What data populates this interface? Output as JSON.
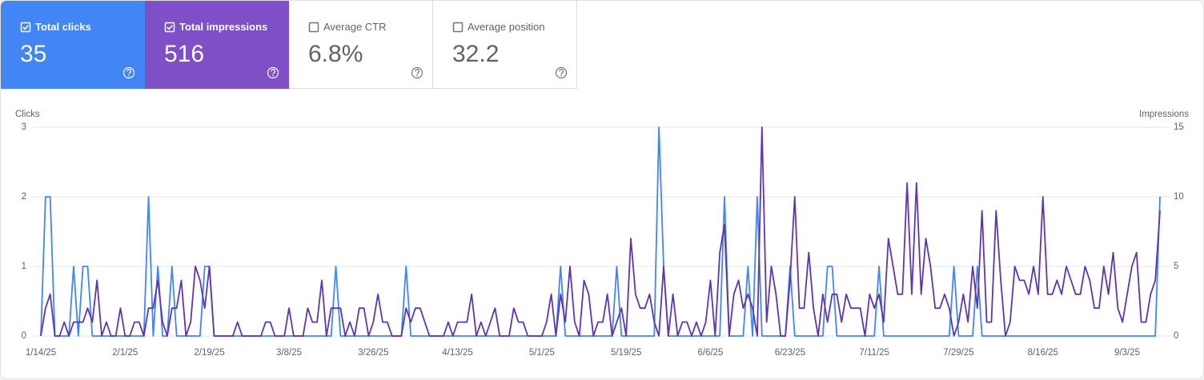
{
  "cards": [
    {
      "label": "Total clicks",
      "value": "35",
      "selected": true
    },
    {
      "label": "Total impressions",
      "value": "516",
      "selected": true
    },
    {
      "label": "Average CTR",
      "value": "6.8%",
      "selected": false
    },
    {
      "label": "Average position",
      "value": "32.2",
      "selected": false
    }
  ],
  "chart_data": {
    "type": "line",
    "x": [
      "1/14/25",
      "1/15/25",
      "1/16/25",
      "1/17/25",
      "1/18/25",
      "1/19/25",
      "1/20/25",
      "1/21/25",
      "1/22/25",
      "1/23/25",
      "1/24/25",
      "1/25/25",
      "1/26/25",
      "1/27/25",
      "1/28/25",
      "1/29/25",
      "1/30/25",
      "1/31/25",
      "2/1/25",
      "2/2/25",
      "2/3/25",
      "2/4/25",
      "2/5/25",
      "2/6/25",
      "2/7/25",
      "2/8/25",
      "2/9/25",
      "2/10/25",
      "2/11/25",
      "2/12/25",
      "2/13/25",
      "2/14/25",
      "2/15/25",
      "2/16/25",
      "2/17/25",
      "2/18/25",
      "2/19/25",
      "2/20/25",
      "2/21/25",
      "2/22/25",
      "2/23/25",
      "2/24/25",
      "2/25/25",
      "2/26/25",
      "2/27/25",
      "2/28/25",
      "3/1/25",
      "3/2/25",
      "3/3/25",
      "3/4/25",
      "3/5/25",
      "3/6/25",
      "3/7/25",
      "3/8/25",
      "3/9/25",
      "3/10/25",
      "3/11/25",
      "3/12/25",
      "3/13/25",
      "3/14/25",
      "3/15/25",
      "3/16/25",
      "3/17/25",
      "3/18/25",
      "3/19/25",
      "3/20/25",
      "3/21/25",
      "3/22/25",
      "3/23/25",
      "3/24/25",
      "3/25/25",
      "3/26/25",
      "3/27/25",
      "3/28/25",
      "3/29/25",
      "3/30/25",
      "3/31/25",
      "4/1/25",
      "4/2/25",
      "4/3/25",
      "4/4/25",
      "4/5/25",
      "4/6/25",
      "4/7/25",
      "4/8/25",
      "4/9/25",
      "4/10/25",
      "4/11/25",
      "4/12/25",
      "4/13/25",
      "4/14/25",
      "4/15/25",
      "4/16/25",
      "4/17/25",
      "4/18/25",
      "4/19/25",
      "4/20/25",
      "4/21/25",
      "4/22/25",
      "4/23/25",
      "4/24/25",
      "4/25/25",
      "4/26/25",
      "4/27/25",
      "4/28/25",
      "4/29/25",
      "4/30/25",
      "5/1/25",
      "5/2/25",
      "5/3/25",
      "5/4/25",
      "5/5/25",
      "5/6/25",
      "5/7/25",
      "5/8/25",
      "5/9/25",
      "5/10/25",
      "5/11/25",
      "5/12/25",
      "5/13/25",
      "5/14/25",
      "5/15/25",
      "5/16/25",
      "5/17/25",
      "5/18/25",
      "5/19/25",
      "5/20/25",
      "5/21/25",
      "5/22/25",
      "5/23/25",
      "5/24/25",
      "5/25/25",
      "5/26/25",
      "5/27/25",
      "5/28/25",
      "5/29/25",
      "5/30/25",
      "5/31/25",
      "6/1/25",
      "6/2/25",
      "6/3/25",
      "6/4/25",
      "6/5/25",
      "6/6/25",
      "6/7/25",
      "6/8/25",
      "6/9/25",
      "6/10/25",
      "6/11/25",
      "6/12/25",
      "6/13/25",
      "6/14/25",
      "6/15/25",
      "6/16/25",
      "6/17/25",
      "6/18/25",
      "6/19/25",
      "6/20/25",
      "6/21/25",
      "6/22/25",
      "6/23/25",
      "6/24/25",
      "6/25/25",
      "6/26/25",
      "6/27/25",
      "6/28/25",
      "6/29/25",
      "6/30/25",
      "7/1/25",
      "7/2/25",
      "7/3/25",
      "7/4/25",
      "7/5/25",
      "7/6/25",
      "7/7/25",
      "7/8/25",
      "7/9/25",
      "7/10/25",
      "7/11/25",
      "7/12/25",
      "7/13/25",
      "7/14/25",
      "7/15/25",
      "7/16/25",
      "7/17/25",
      "7/18/25",
      "7/19/25",
      "7/20/25",
      "7/21/25",
      "7/22/25",
      "7/23/25",
      "7/24/25",
      "7/25/25",
      "7/26/25",
      "7/27/25",
      "7/28/25",
      "7/29/25",
      "7/30/25",
      "7/31/25",
      "8/1/25",
      "8/2/25",
      "8/3/25",
      "8/4/25",
      "8/5/25",
      "8/6/25",
      "8/7/25",
      "8/8/25",
      "8/9/25",
      "8/10/25",
      "8/11/25",
      "8/12/25",
      "8/13/25",
      "8/14/25",
      "8/15/25",
      "8/16/25",
      "8/17/25",
      "8/18/25",
      "8/19/25",
      "8/20/25",
      "8/21/25",
      "8/22/25",
      "8/23/25",
      "8/24/25",
      "8/25/25",
      "8/26/25",
      "8/27/25",
      "8/28/25",
      "8/29/25",
      "8/30/25",
      "8/31/25",
      "9/1/25",
      "9/2/25",
      "9/3/25",
      "9/4/25",
      "9/5/25",
      "9/6/25",
      "9/7/25",
      "9/8/25",
      "9/9/25",
      "9/10/25"
    ],
    "xticks": [
      "1/14/25",
      "2/1/25",
      "2/19/25",
      "3/8/25",
      "3/26/25",
      "4/13/25",
      "5/1/25",
      "5/19/25",
      "6/6/25",
      "6/23/25",
      "7/11/25",
      "7/29/25",
      "8/16/25",
      "9/3/25"
    ],
    "ylim": [
      0,
      3
    ],
    "yticks": [
      0,
      1,
      2,
      3
    ],
    "y2lim": [
      0,
      15
    ],
    "y2ticks": [
      0,
      5,
      10,
      15
    ],
    "grid": true,
    "series": [
      {
        "name": "Clicks",
        "color": "#4285f4",
        "values": [
          0,
          2,
          2,
          0,
          0,
          0,
          0,
          1,
          0,
          1,
          1,
          0,
          0,
          0,
          0,
          0,
          0,
          0,
          0,
          0,
          0,
          0,
          0,
          2,
          0,
          1,
          0,
          0,
          1,
          0,
          0,
          0,
          0,
          0,
          0,
          1,
          1,
          0,
          0,
          0,
          0,
          0,
          0,
          0,
          0,
          0,
          0,
          0,
          0,
          0,
          0,
          0,
          0,
          0,
          0,
          0,
          0,
          0,
          0,
          0,
          0,
          0,
          0,
          1,
          0,
          0,
          0,
          0,
          0,
          0,
          0,
          0,
          0,
          0,
          0,
          0,
          0,
          0,
          1,
          0,
          0,
          0,
          0,
          0,
          0,
          0,
          0,
          0,
          0,
          0,
          0,
          0,
          0,
          0,
          0,
          0,
          0,
          0,
          0,
          0,
          0,
          0,
          0,
          0,
          0,
          0,
          0,
          0,
          0,
          0,
          0,
          1,
          0,
          0,
          0,
          0,
          0,
          0,
          0,
          0,
          0,
          0,
          0,
          1,
          0,
          0,
          0,
          0,
          0,
          0,
          0,
          0,
          3,
          1,
          0,
          0,
          0,
          0,
          0,
          0,
          0,
          0,
          0,
          0,
          0,
          0,
          2,
          0,
          0,
          0,
          0,
          1,
          0,
          2,
          0,
          0,
          0,
          0,
          0,
          0,
          1,
          0,
          0,
          0,
          0,
          0,
          0,
          0,
          1,
          1,
          0,
          0,
          0,
          0,
          0,
          0,
          0,
          0,
          0,
          1,
          0,
          0,
          0,
          0,
          0,
          0,
          0,
          0,
          0,
          0,
          0,
          0,
          0,
          0,
          0,
          1,
          0,
          0,
          0,
          0,
          1,
          0,
          0,
          0,
          0,
          0,
          0,
          0,
          0,
          0,
          0,
          0,
          0,
          0,
          0,
          0,
          0,
          0,
          0,
          0,
          0,
          0,
          0,
          0,
          0,
          0,
          0,
          0,
          0,
          0,
          0,
          0,
          0,
          0,
          0,
          0,
          0,
          0,
          0,
          2
        ]
      },
      {
        "name": "Impressions",
        "color": "#5e35b1",
        "axis": "y2",
        "values": [
          0,
          2,
          3,
          0,
          0,
          1,
          0,
          1,
          1,
          1,
          2,
          1,
          4,
          0,
          1,
          0,
          0,
          2,
          0,
          0,
          1,
          1,
          0,
          2,
          2,
          4,
          1,
          0,
          2,
          2,
          4,
          0,
          1,
          5,
          4,
          2,
          5,
          0,
          0,
          0,
          0,
          0,
          1,
          0,
          0,
          0,
          0,
          0,
          1,
          1,
          0,
          0,
          0,
          2,
          0,
          0,
          0,
          2,
          1,
          1,
          4,
          0,
          2,
          2,
          2,
          0,
          1,
          0,
          2,
          2,
          0,
          1,
          3,
          1,
          1,
          0,
          0,
          0,
          2,
          1,
          2,
          2,
          1,
          0,
          0,
          0,
          0,
          1,
          0,
          1,
          1,
          1,
          3,
          0,
          1,
          0,
          1,
          2,
          0,
          0,
          0,
          2,
          1,
          1,
          0,
          0,
          0,
          0,
          1,
          3,
          0,
          3,
          1,
          5,
          1,
          0,
          4,
          3,
          0,
          1,
          1,
          3,
          0,
          1,
          2,
          0,
          7,
          3,
          2,
          2,
          3,
          1,
          0,
          5,
          0,
          3,
          0,
          1,
          1,
          0,
          1,
          0,
          1,
          4,
          0,
          6,
          8,
          0,
          3,
          4,
          2,
          3,
          2,
          0,
          15,
          1,
          5,
          3,
          0,
          0,
          4,
          10,
          2,
          2,
          6,
          2,
          0,
          3,
          1,
          3,
          3,
          1,
          3,
          2,
          2,
          2,
          0,
          3,
          2,
          3,
          1,
          7,
          5,
          3,
          3,
          11,
          3,
          11,
          3,
          7,
          5,
          2,
          2,
          3,
          2,
          0,
          1,
          3,
          1,
          5,
          2,
          9,
          1,
          1,
          9,
          4,
          0,
          1,
          5,
          4,
          4,
          3,
          5,
          3,
          10,
          3,
          3,
          4,
          3,
          5,
          4,
          3,
          3,
          5,
          4,
          2,
          2,
          5,
          3,
          6,
          2,
          1,
          3,
          5,
          6,
          1,
          1,
          3,
          4,
          9
        ]
      }
    ]
  }
}
